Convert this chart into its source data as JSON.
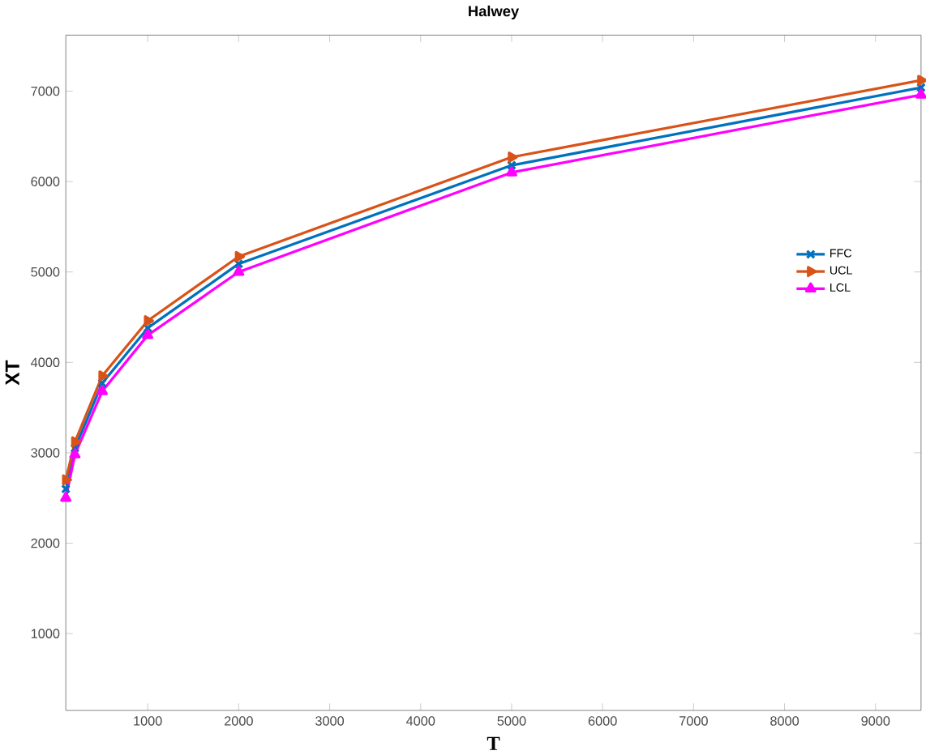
{
  "chart_data": {
    "type": "line",
    "title": "Halwey",
    "xlabel": "T",
    "ylabel": "XT",
    "x": [
      100,
      200,
      500,
      1000,
      2000,
      5000,
      9500
    ],
    "series": [
      {
        "name": "FFC",
        "color": "#0072bd",
        "marker": "cross",
        "values": [
          2600,
          3050,
          3770,
          4380,
          5090,
          6180,
          7040
        ]
      },
      {
        "name": "UCL",
        "color": "#d95319",
        "marker": "triangle-right",
        "values": [
          2700,
          3120,
          3850,
          4460,
          5170,
          6270,
          7120
        ]
      },
      {
        "name": "LCL",
        "color": "#ff00ff",
        "marker": "triangle",
        "values": [
          2500,
          2980,
          3680,
          4300,
          5000,
          6100,
          6960
        ]
      }
    ],
    "xlim": [
      100,
      9500
    ],
    "ylim": [
      150,
      7620
    ],
    "xticks": [
      1000,
      2000,
      3000,
      4000,
      5000,
      6000,
      7000,
      8000,
      9000
    ],
    "yticks": [
      1000,
      2000,
      3000,
      4000,
      5000,
      6000,
      7000
    ],
    "grid": false,
    "legend": "right",
    "line_style": "solid"
  }
}
